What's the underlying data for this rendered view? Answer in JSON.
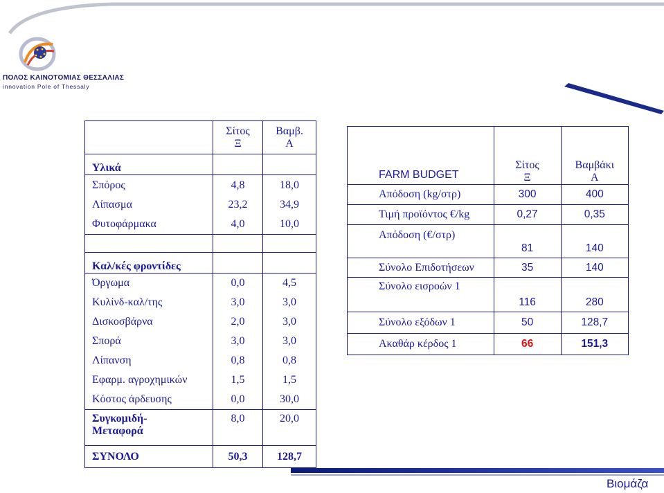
{
  "logo": {
    "name": "ΠΟΛΟΣ ΚΑΙΝΟΤΟΜΙΑΣ ΘΕΣΣΑΛΙΑΣ",
    "subtitle": "innovation Pole of Thessaly"
  },
  "footer": {
    "title": "Βιομάζα"
  },
  "left_table": {
    "header": {
      "col1": [
        "Σίτος",
        "Ξ"
      ],
      "col2": [
        "Βαμβ.",
        "Α"
      ]
    },
    "sections": [
      {
        "title": "Υλικά",
        "rows": [
          {
            "label": "Σπόρος",
            "v1": "4,8",
            "v2": "18,0"
          },
          {
            "label": "Λίπασμα",
            "v1": "23,2",
            "v2": "34,9"
          },
          {
            "label": "Φυτοφάρμακα",
            "v1": "4,0",
            "v2": "10,0"
          }
        ]
      },
      {
        "title": "Καλ/κές φροντίδες",
        "rows": [
          {
            "label": "Όργωμα",
            "v1": "0,0",
            "v2": "4,5"
          },
          {
            "label": "Κυλίνδ-καλ/της",
            "v1": "3,0",
            "v2": "3,0"
          },
          {
            "label": "Δισκοσβάρνα",
            "v1": "2,0",
            "v2": "3,0"
          },
          {
            "label": "Σπορά",
            "v1": "3,0",
            "v2": "3,0"
          },
          {
            "label": "Λίπανση",
            "v1": "0,8",
            "v2": "0,8"
          },
          {
            "label": "Εφαρμ. αγροχημικών",
            "v1": "1,5",
            "v2": "1,5"
          },
          {
            "label": "Κόστος άρδευσης",
            "v1": "0,0",
            "v2": "30,0"
          }
        ]
      }
    ],
    "transport": {
      "label1": "Συγκομιδή-",
      "label2": "Μεταφορά",
      "v1": "8,0",
      "v2": "20,0"
    },
    "total": {
      "label": "ΣΥΝΟΛΟ",
      "v1": "50,3",
      "v2": "128,7"
    }
  },
  "right_table": {
    "title": "FARM BUDGET",
    "header": {
      "col1": [
        "Σίτος",
        "Ξ"
      ],
      "col2": [
        "Βαμβάκι",
        "Α"
      ]
    },
    "rows": [
      {
        "label": "Απόδοση (kg/στρ)",
        "v1": "300",
        "v2": "400"
      },
      {
        "label": "Τιμή προϊόντος €/kg",
        "v1": "0,27",
        "v2": "0,35"
      },
      {
        "label": "Απόδοση (€/στρ)",
        "v1": "81",
        "v2": "140"
      },
      {
        "label": "Σύνολο Επιδοτήσεων",
        "v1": "35",
        "v2": "140"
      },
      {
        "label": "Σύνολο εισροών 1",
        "v1": "116",
        "v2": "280"
      },
      {
        "label": "Σύνολο εξόδων 1",
        "v1": "50",
        "v2": "128,7"
      },
      {
        "label": "Ακαθάρ κέρδος 1",
        "v1": "66",
        "v2": "151,3"
      }
    ]
  },
  "colors": {
    "text": "#1a1a9c",
    "highlight": "#e01010"
  }
}
